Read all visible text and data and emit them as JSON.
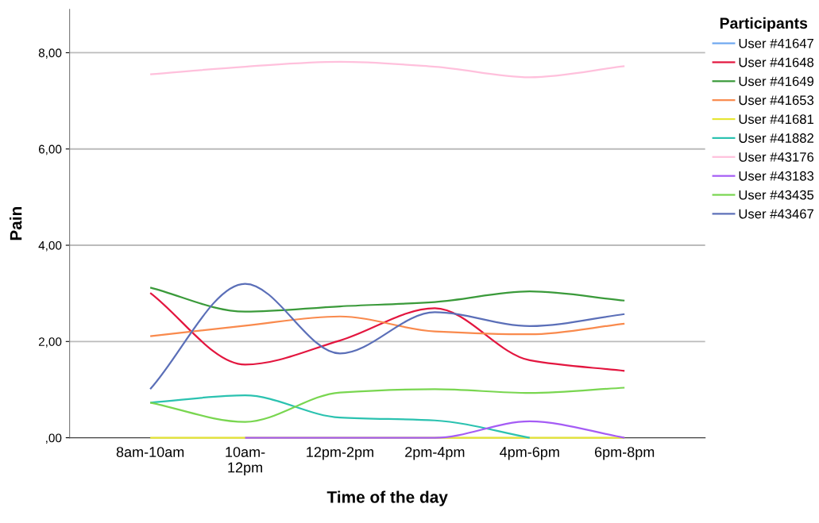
{
  "chart_data": {
    "type": "line",
    "xlabel": "Time of the day",
    "ylabel": "Pain",
    "legend_title": "Participants",
    "categories": [
      "8am-10am",
      "10am-\n12pm",
      "12pm-2pm",
      "2pm-4pm",
      "4pm-6pm",
      "6pm-8pm"
    ],
    "series": [
      {
        "name": "User #41647",
        "color": "#6fa8f0",
        "values": [
          null,
          null,
          null,
          null,
          null,
          null
        ]
      },
      {
        "name": "User #41648",
        "color": "#e3163f",
        "values": [
          3.01,
          1.52,
          2.02,
          2.69,
          1.61,
          1.39
        ]
      },
      {
        "name": "User #41649",
        "color": "#3a9a3a",
        "values": [
          3.12,
          2.62,
          2.73,
          2.82,
          3.04,
          2.85
        ]
      },
      {
        "name": "User #41653",
        "color": "#f98a4d",
        "values": [
          2.11,
          2.33,
          2.52,
          2.21,
          2.15,
          2.37
        ]
      },
      {
        "name": "User #41681",
        "color": "#e6e634",
        "values": [
          0,
          0,
          0,
          0,
          0,
          0
        ]
      },
      {
        "name": "User #41882",
        "color": "#2bc2b0",
        "values": [
          0.73,
          0.88,
          0.42,
          0.36,
          0,
          null
        ]
      },
      {
        "name": "User #43176",
        "color": "#ffc0dc",
        "values": [
          7.55,
          7.71,
          7.81,
          7.71,
          7.49,
          7.72
        ]
      },
      {
        "name": "User #43183",
        "color": "#a55cf5",
        "values": [
          null,
          0,
          0,
          0,
          0.34,
          0
        ]
      },
      {
        "name": "User #43435",
        "color": "#79d650",
        "values": [
          0.73,
          0.33,
          0.94,
          1.01,
          0.93,
          1.04
        ]
      },
      {
        "name": "User #43467",
        "color": "#5b6fb8",
        "values": [
          1.01,
          3.2,
          1.75,
          2.61,
          2.32,
          2.57
        ]
      }
    ],
    "ylim": [
      0,
      8.9
    ],
    "yticks": [
      {
        "value": 0,
        "label": ",00"
      },
      {
        "value": 2,
        "label": "2,00"
      },
      {
        "value": 4,
        "label": "4,00"
      },
      {
        "value": 6,
        "label": "6,00"
      },
      {
        "value": 8,
        "label": "8,00"
      }
    ],
    "grid": "y",
    "legend": "top right",
    "marker": "none",
    "line_style": "solid"
  }
}
